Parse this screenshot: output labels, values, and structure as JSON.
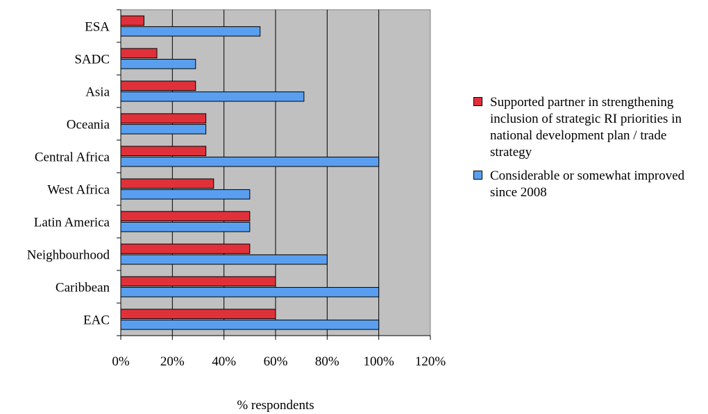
{
  "chart_data": {
    "type": "bar",
    "orientation": "horizontal",
    "categories": [
      "ESA",
      "SADC",
      "Asia",
      "Oceania",
      "Central Africa",
      "West Africa",
      "Latin America",
      "Neighbourhood",
      "Caribbean",
      "EAC"
    ],
    "series": [
      {
        "name": "Supported partner in strengthening inclusion of strategic RI priorities in national development plan / trade strategy",
        "color": "#e0313a",
        "values": [
          9,
          14,
          29,
          33,
          33,
          36,
          50,
          50,
          60,
          60
        ]
      },
      {
        "name": "Considerable or somewhat improved since 2008",
        "color": "#5a9fef",
        "values": [
          54,
          29,
          71,
          33,
          100,
          50,
          50,
          80,
          100,
          100
        ]
      }
    ],
    "xlim": [
      0,
      120
    ],
    "xticks": [
      "0%",
      "20%",
      "40%",
      "60%",
      "80%",
      "100%",
      "120%"
    ],
    "xlabel": "% respondents",
    "ylabel": "",
    "title": "",
    "grid": true,
    "plot_background": "#c0c0c0",
    "legend_position": "right"
  }
}
